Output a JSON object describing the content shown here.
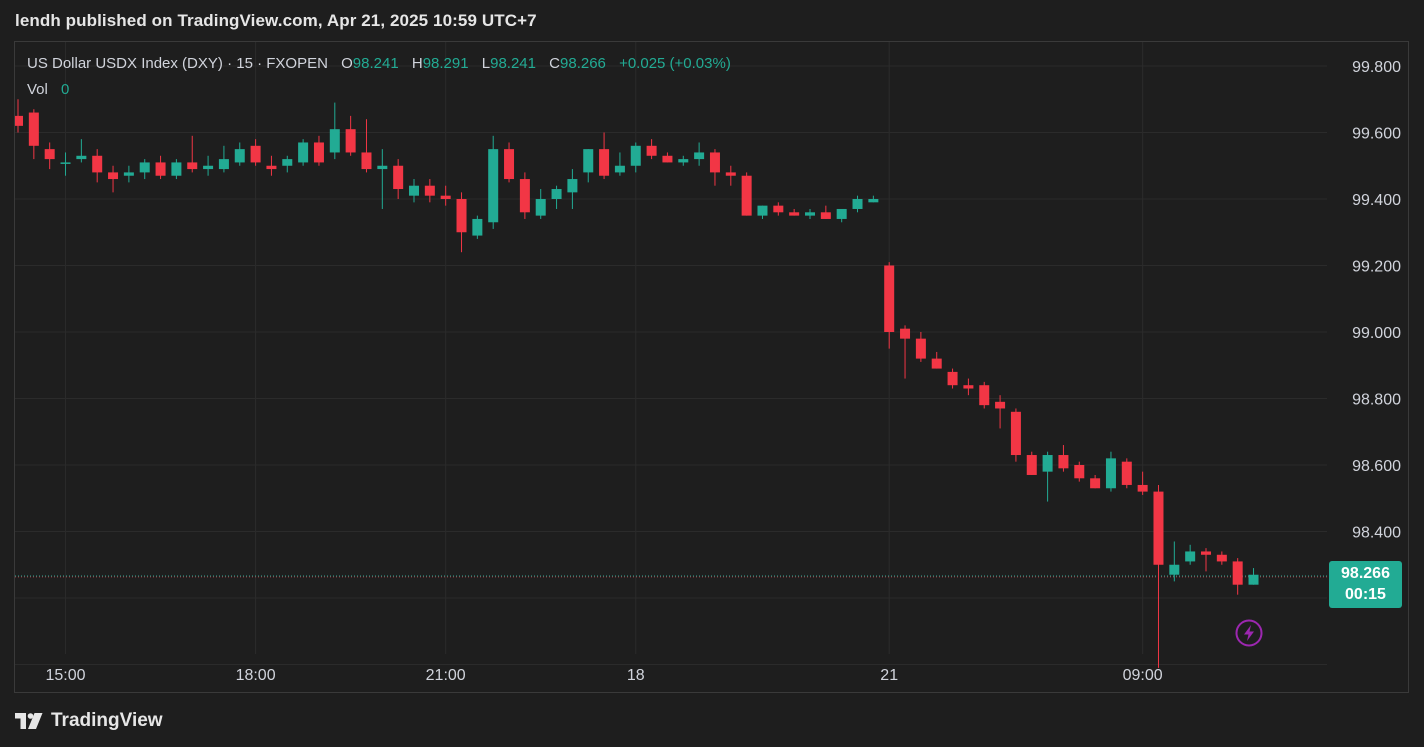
{
  "header": {
    "text": "lendh published on TradingView.com, Apr 21, 2025 10:59 UTC+7"
  },
  "legend": {
    "symbol": "US Dollar USDX Index (DXY)",
    "sep1": "·",
    "interval": "15",
    "sep2": "·",
    "source": "FXOPEN",
    "open_label": "O",
    "open": "98.241",
    "high_label": "H",
    "high": "98.291",
    "low_label": "L",
    "low": "98.241",
    "close_label": "C",
    "close": "98.266",
    "change": "+0.025 (+0.03%)",
    "vol_label": "Vol",
    "vol": "0"
  },
  "price_tag": {
    "price": "98.266",
    "countdown": "00:15"
  },
  "footer": {
    "logo_text": "TradingView"
  },
  "colors": {
    "up": "#22ab94",
    "down": "#f23645",
    "grid": "#2b2b2b",
    "background": "#1e1e1e",
    "axis_text": "#d1d4dc",
    "alert": "#9c27b0"
  },
  "icons": {
    "alert": "lightning-alert-icon",
    "logo": "tradingview-logo-icon"
  },
  "chart_data": {
    "type": "candlestick",
    "title": "US Dollar USDX Index (DXY) · 15 · FXOPEN",
    "y_axis": {
      "side": "right",
      "ticks": [
        99.8,
        99.6,
        99.4,
        99.2,
        99.0,
        98.8,
        98.6,
        98.4
      ],
      "tick_labels": [
        "99.800",
        "99.600",
        "99.400",
        "99.200",
        "99.000",
        "98.800",
        "98.600",
        "98.400"
      ],
      "range": [
        97.98,
        99.88
      ]
    },
    "x_axis": {
      "labels": [
        "15:00",
        "18:00",
        "21:00",
        "18",
        "21",
        "09:00"
      ],
      "label_bar_index": [
        3,
        15,
        27,
        39,
        55,
        71
      ]
    },
    "grid": true,
    "last_price": 98.266,
    "candles": [
      [
        99.65,
        99.7,
        99.6,
        99.62
      ],
      [
        99.66,
        99.67,
        99.52,
        99.56
      ],
      [
        99.55,
        99.57,
        99.49,
        99.52
      ],
      [
        99.51,
        99.54,
        99.47,
        99.51
      ],
      [
        99.52,
        99.58,
        99.51,
        99.53
      ],
      [
        99.53,
        99.55,
        99.45,
        99.48
      ],
      [
        99.48,
        99.5,
        99.42,
        99.46
      ],
      [
        99.47,
        99.5,
        99.45,
        99.48
      ],
      [
        99.48,
        99.52,
        99.46,
        99.51
      ],
      [
        99.51,
        99.53,
        99.46,
        99.47
      ],
      [
        99.47,
        99.52,
        99.46,
        99.51
      ],
      [
        99.51,
        99.59,
        99.48,
        99.49
      ],
      [
        99.49,
        99.53,
        99.47,
        99.5
      ],
      [
        99.49,
        99.56,
        99.48,
        99.52
      ],
      [
        99.51,
        99.57,
        99.5,
        99.55
      ],
      [
        99.56,
        99.58,
        99.5,
        99.51
      ],
      [
        99.5,
        99.53,
        99.47,
        99.49
      ],
      [
        99.5,
        99.53,
        99.48,
        99.52
      ],
      [
        99.51,
        99.58,
        99.5,
        99.57
      ],
      [
        99.57,
        99.59,
        99.5,
        99.51
      ],
      [
        99.54,
        99.69,
        99.52,
        99.61
      ],
      [
        99.61,
        99.65,
        99.53,
        99.54
      ],
      [
        99.54,
        99.64,
        99.48,
        99.49
      ],
      [
        99.49,
        99.55,
        99.37,
        99.5
      ],
      [
        99.5,
        99.52,
        99.4,
        99.43
      ],
      [
        99.41,
        99.46,
        99.39,
        99.44
      ],
      [
        99.44,
        99.46,
        99.39,
        99.41
      ],
      [
        99.41,
        99.44,
        99.38,
        99.4
      ],
      [
        99.4,
        99.42,
        99.24,
        99.3
      ],
      [
        99.29,
        99.35,
        99.28,
        99.34
      ],
      [
        99.33,
        99.59,
        99.31,
        99.55
      ],
      [
        99.55,
        99.57,
        99.45,
        99.46
      ],
      [
        99.46,
        99.48,
        99.34,
        99.36
      ],
      [
        99.35,
        99.43,
        99.34,
        99.4
      ],
      [
        99.4,
        99.44,
        99.37,
        99.43
      ],
      [
        99.42,
        99.49,
        99.37,
        99.46
      ],
      [
        99.48,
        99.55,
        99.45,
        99.55
      ],
      [
        99.55,
        99.6,
        99.46,
        99.47
      ],
      [
        99.48,
        99.54,
        99.47,
        99.5
      ],
      [
        99.5,
        99.57,
        99.48,
        99.56
      ],
      [
        99.56,
        99.58,
        99.52,
        99.53
      ],
      [
        99.53,
        99.54,
        99.51,
        99.51
      ],
      [
        99.51,
        99.53,
        99.5,
        99.52
      ],
      [
        99.52,
        99.57,
        99.5,
        99.54
      ],
      [
        99.54,
        99.55,
        99.44,
        99.48
      ],
      [
        99.48,
        99.5,
        99.44,
        99.47
      ],
      [
        99.47,
        99.48,
        99.35,
        99.35
      ],
      [
        99.35,
        99.38,
        99.34,
        99.38
      ],
      [
        99.38,
        99.39,
        99.35,
        99.36
      ],
      [
        99.36,
        99.37,
        99.35,
        99.35
      ],
      [
        99.35,
        99.37,
        99.34,
        99.36
      ],
      [
        99.36,
        99.38,
        99.34,
        99.34
      ],
      [
        99.34,
        99.36,
        99.33,
        99.37
      ],
      [
        99.37,
        99.41,
        99.36,
        99.4
      ],
      [
        99.39,
        99.41,
        99.39,
        99.4
      ],
      [
        99.2,
        99.21,
        98.95,
        99.0
      ],
      [
        99.01,
        99.02,
        98.86,
        98.98
      ],
      [
        98.98,
        99.0,
        98.91,
        98.92
      ],
      [
        98.92,
        98.94,
        98.89,
        98.89
      ],
      [
        98.88,
        98.89,
        98.83,
        98.84
      ],
      [
        98.84,
        98.86,
        98.81,
        98.83
      ],
      [
        98.84,
        98.85,
        98.77,
        98.78
      ],
      [
        98.79,
        98.81,
        98.71,
        98.77
      ],
      [
        98.76,
        98.77,
        98.61,
        98.63
      ],
      [
        98.63,
        98.64,
        98.57,
        98.57
      ],
      [
        98.58,
        98.64,
        98.49,
        98.63
      ],
      [
        98.63,
        98.66,
        98.58,
        98.59
      ],
      [
        98.6,
        98.61,
        98.55,
        98.56
      ],
      [
        98.56,
        98.57,
        98.53,
        98.53
      ],
      [
        98.53,
        98.64,
        98.52,
        98.62
      ],
      [
        98.61,
        98.62,
        98.53,
        98.54
      ],
      [
        98.54,
        98.58,
        98.51,
        98.52
      ],
      [
        98.52,
        98.54,
        97.99,
        98.3
      ],
      [
        98.27,
        98.37,
        98.25,
        98.3
      ],
      [
        98.31,
        98.36,
        98.3,
        98.34
      ],
      [
        98.34,
        98.35,
        98.28,
        98.33
      ],
      [
        98.33,
        98.34,
        98.3,
        98.31
      ],
      [
        98.31,
        98.32,
        98.21,
        98.24
      ],
      [
        98.24,
        98.29,
        98.24,
        98.27
      ]
    ]
  }
}
